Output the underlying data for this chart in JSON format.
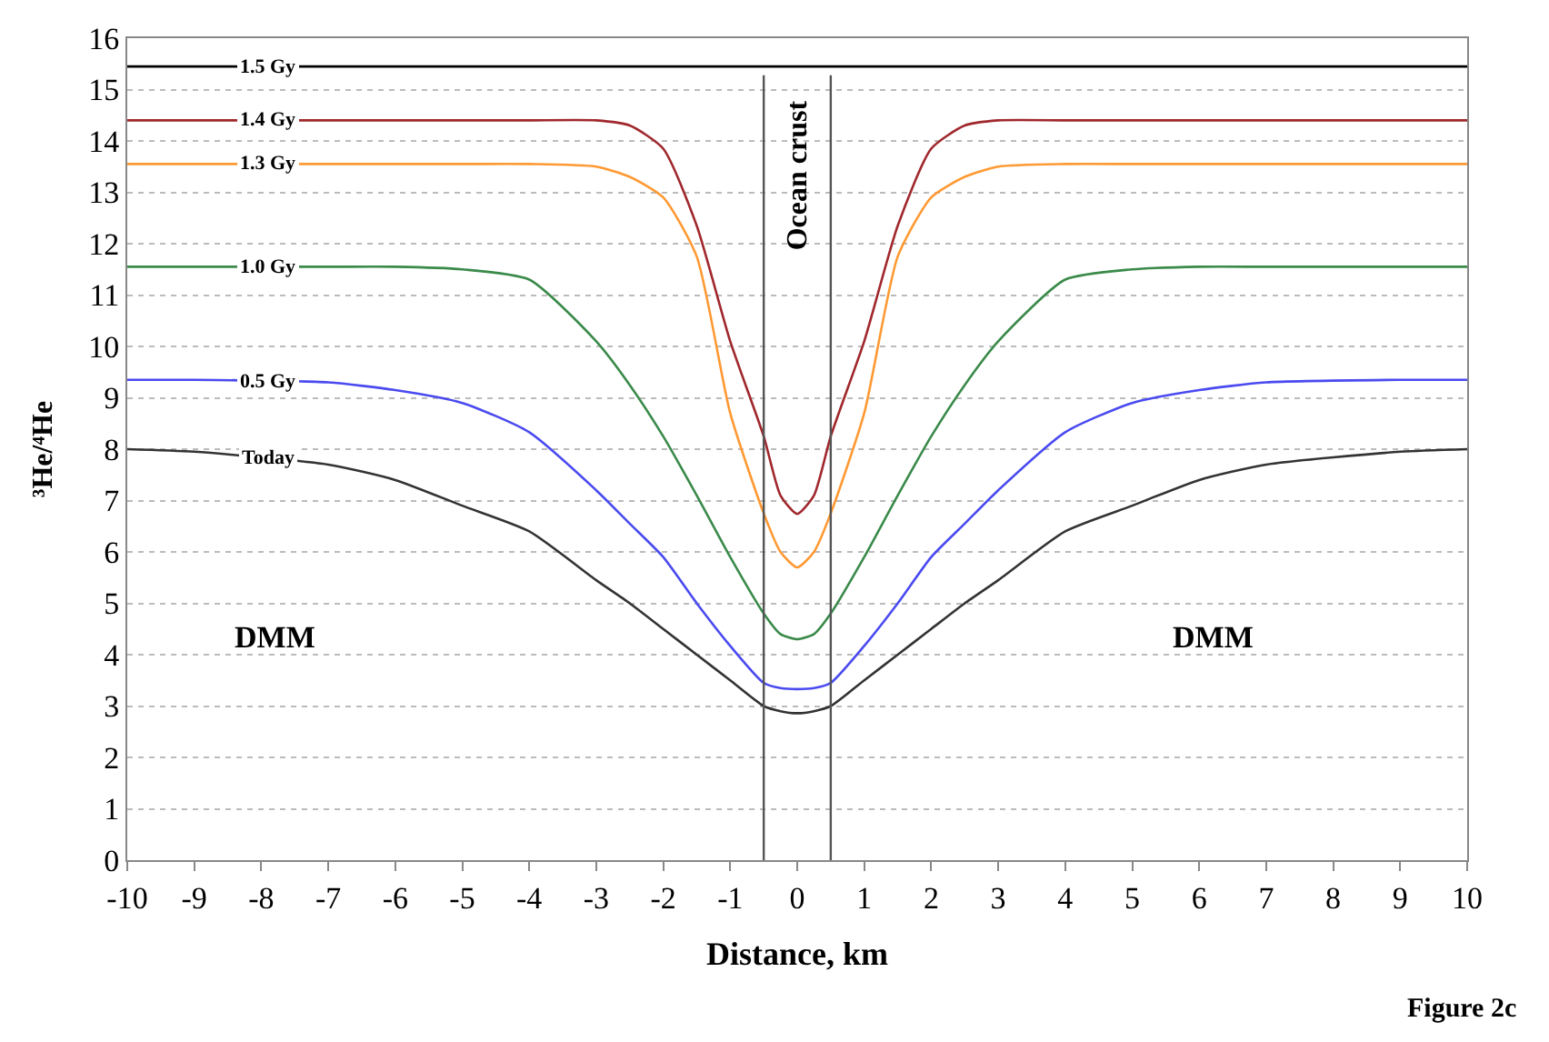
{
  "chart_data": {
    "type": "line",
    "xlabel": "Distance, km",
    "ylabel": "³He/⁴He",
    "x": [
      -10,
      -9,
      -7,
      -6,
      -5,
      -4,
      -3,
      -2.5,
      -2,
      -1.5,
      -1,
      -0.5,
      -0.25,
      0,
      0.25,
      0.5,
      1,
      1.5,
      2,
      2.5,
      3,
      4,
      5,
      6,
      7,
      9,
      10
    ],
    "series": [
      {
        "name": "1.5 Gy",
        "color": "#000000",
        "values": [
          15.45,
          15.45,
          15.45,
          15.45,
          15.45,
          15.45,
          15.45,
          15.45,
          15.45,
          15.45,
          15.45,
          15.45,
          15.45,
          15.45,
          15.45,
          15.45,
          15.45,
          15.45,
          15.45,
          15.45,
          15.45,
          15.45,
          15.45,
          15.45,
          15.45,
          15.45,
          15.45
        ]
      },
      {
        "name": "1.4 Gy",
        "color": "#a0282d",
        "values": [
          14.4,
          14.4,
          14.4,
          14.4,
          14.4,
          14.4,
          14.4,
          14.3,
          13.85,
          12.35,
          10.1,
          8.25,
          7.1,
          6.74,
          7.1,
          8.25,
          10.1,
          12.35,
          13.85,
          14.3,
          14.4,
          14.4,
          14.4,
          14.4,
          14.4,
          14.4,
          14.4
        ]
      },
      {
        "name": "1.3 Gy",
        "color": "#ff9933",
        "values": [
          13.55,
          13.55,
          13.55,
          13.55,
          13.55,
          13.55,
          13.5,
          13.3,
          12.9,
          11.75,
          8.7,
          6.75,
          6.0,
          5.7,
          6.0,
          6.75,
          8.7,
          11.75,
          12.9,
          13.3,
          13.5,
          13.55,
          13.55,
          13.55,
          13.55,
          13.55,
          13.55
        ]
      },
      {
        "name": "1.0 Gy",
        "color": "#3a8a4a",
        "values": [
          11.55,
          11.55,
          11.55,
          11.55,
          11.5,
          11.3,
          10.1,
          9.25,
          8.25,
          7.1,
          5.9,
          4.8,
          4.4,
          4.3,
          4.4,
          4.8,
          5.9,
          7.1,
          8.25,
          9.25,
          10.1,
          11.3,
          11.5,
          11.55,
          11.55,
          11.55,
          11.55
        ]
      },
      {
        "name": "0.5 Gy",
        "color": "#4a4af0",
        "values": [
          9.35,
          9.35,
          9.3,
          9.15,
          8.9,
          8.33,
          7.2,
          6.55,
          5.9,
          5.0,
          4.17,
          3.45,
          3.35,
          3.33,
          3.35,
          3.45,
          4.17,
          5.0,
          5.9,
          6.55,
          7.2,
          8.33,
          8.9,
          9.15,
          9.3,
          9.35,
          9.35
        ]
      },
      {
        "name": "Today",
        "color": "#333333",
        "values": [
          8.0,
          7.95,
          7.7,
          7.4,
          6.9,
          6.4,
          5.45,
          5.0,
          4.5,
          4.0,
          3.5,
          3.0,
          2.9,
          2.86,
          2.9,
          3.0,
          3.5,
          4.0,
          4.5,
          5.0,
          5.45,
          6.4,
          6.9,
          7.4,
          7.7,
          7.95,
          8.0
        ]
      }
    ],
    "ref_lines": [
      {
        "axis": "x",
        "value": -0.5,
        "color": "#555555"
      },
      {
        "axis": "x",
        "value": 0.5,
        "color": "#555555"
      }
    ],
    "annotations": [
      "Ocean crust",
      "DMM",
      "DMM",
      "Figure 2c"
    ],
    "xlim": [
      -10,
      10
    ],
    "xticks": [
      -10,
      -9,
      -8,
      -7,
      -6,
      -5,
      -4,
      -3,
      -2,
      -1,
      0,
      1,
      2,
      3,
      4,
      5,
      6,
      7,
      8,
      9,
      10
    ],
    "ylim": [
      0,
      16
    ],
    "yticks": [
      0,
      1,
      2,
      3,
      4,
      5,
      6,
      7,
      8,
      9,
      10,
      11,
      12,
      13,
      14,
      15,
      16
    ],
    "grid": "y",
    "legend": false,
    "marker": "none",
    "line_style": "solid"
  }
}
